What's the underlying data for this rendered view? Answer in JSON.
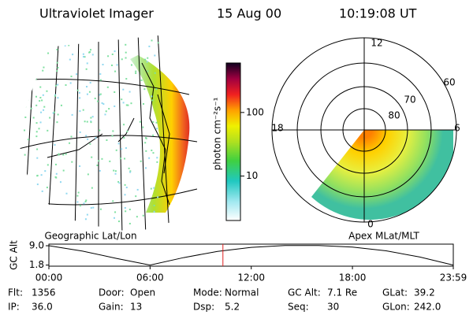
{
  "header": {
    "title": "Ultraviolet Imager",
    "date": "15 Aug 00",
    "time": "10:19:08 UT"
  },
  "colorbar": {
    "label": "photon cm⁻²s⁻¹",
    "log": true,
    "lim": [
      2,
      600
    ],
    "ticks": [
      10,
      100
    ]
  },
  "left_panel": {
    "caption": "Geographic Lat/Lon"
  },
  "right_panel": {
    "caption": "Apex MLat/MLT",
    "mlt_labels": [
      "12",
      "18",
      "6",
      "0"
    ],
    "lat_labels": [
      "60",
      "70",
      "80"
    ]
  },
  "altitude_plot": {
    "ylabel": "GC Alt",
    "ylim": [
      1.4,
      9.6
    ],
    "yticks": [
      {
        "value": 9,
        "label": "9.0"
      },
      1.8
    ],
    "xlim": [
      0,
      23.98
    ],
    "xticks": [
      {
        "value": 0,
        "label": "00:00"
      },
      {
        "value": 6,
        "label": "06:00"
      },
      {
        "value": 12,
        "label": "12:00"
      },
      {
        "value": 18,
        "label": "18:00"
      },
      {
        "value": 23.98,
        "label": "23:59"
      }
    ],
    "x": [
      0,
      2,
      4,
      6,
      8,
      10,
      12,
      14,
      16,
      18,
      20,
      22,
      23.98
    ],
    "values": [
      9.0,
      7.0,
      4.3,
      1.8,
      4.6,
      6.9,
      8.4,
      9.1,
      9.1,
      8.5,
      7.1,
      4.8,
      1.8
    ],
    "marker_x": 10.32,
    "color": "#000000",
    "marker_color": "#e02020"
  },
  "info": [
    [
      {
        "label": "Flt:",
        "value": "1356"
      },
      {
        "label": "Door:",
        "value": "Open"
      },
      {
        "label": "Mode:",
        "value": "Normal"
      },
      {
        "label": "GC Alt:",
        "value": "7.1 Re"
      },
      {
        "label": "GLat:",
        "value": "39.2"
      }
    ],
    [
      {
        "label": "IP:",
        "value": "36.0"
      },
      {
        "label": "Gain:",
        "value": "13"
      },
      {
        "label": "Dsp:",
        "value": "5.2"
      },
      {
        "label": "Seq:",
        "value": "30"
      },
      {
        "label": "GLon:",
        "value": "242.0"
      }
    ]
  ]
}
